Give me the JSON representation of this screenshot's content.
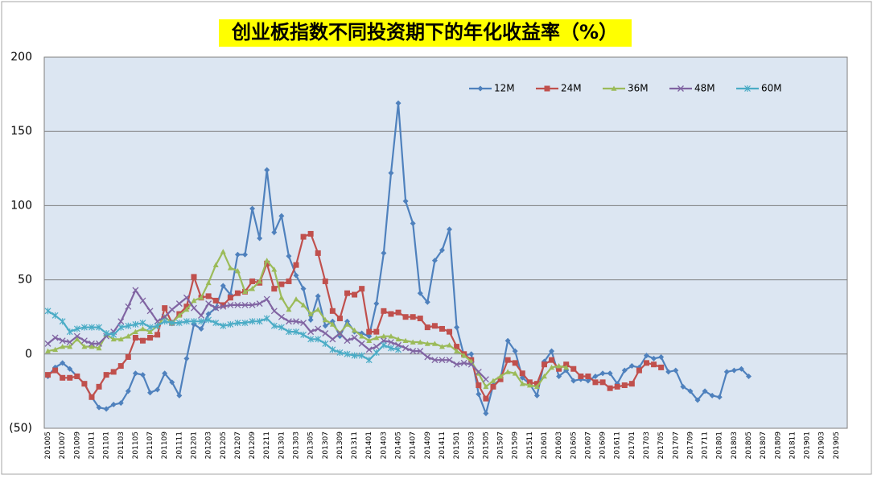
{
  "chart_data": {
    "type": "line",
    "title": "创业板指数不同投资期下的年化收益率（%）",
    "categories": [
      "201005",
      null,
      "201007",
      null,
      "201009",
      null,
      "201011",
      null,
      "201101",
      null,
      "201103",
      null,
      "201105",
      null,
      "201107",
      null,
      "201109",
      null,
      "201111",
      null,
      "201201",
      null,
      "201203",
      null,
      "201205",
      null,
      "201207",
      null,
      "201209",
      null,
      "201211",
      null,
      "201301",
      null,
      "201303",
      null,
      "201305",
      null,
      "201307",
      null,
      "201309",
      null,
      "201311",
      null,
      "201401",
      null,
      "201403",
      null,
      "201405",
      null,
      "201407",
      null,
      "201409",
      null,
      "201411",
      null,
      "201501",
      null,
      "201503",
      null,
      "201505",
      null,
      "201507",
      null,
      "201509",
      null,
      "201511",
      null,
      "201601",
      null,
      "201603",
      null,
      "201605",
      null,
      "201607",
      null,
      "201609",
      null,
      "201611",
      null,
      "201701",
      null,
      "201703",
      null,
      "201705",
      null,
      "201707",
      null,
      "201709",
      null,
      "201711",
      null,
      "201801",
      null,
      "201803",
      null,
      "201805",
      null,
      "201807",
      null,
      "201809",
      null,
      "201811",
      null,
      "201901",
      null,
      "201903",
      null,
      "201905",
      null
    ],
    "series": [
      {
        "name": "12M",
        "color": "#4f81bd",
        "marker": "diamond",
        "values": [
          -15,
          -9,
          -6,
          -10,
          -15,
          -20,
          -29,
          -36,
          -37,
          -34,
          -33,
          -25,
          -13,
          -14,
          -26,
          -24,
          -13,
          -19,
          -28,
          -3,
          20,
          17,
          27,
          31,
          46,
          40,
          67,
          67,
          98,
          78,
          124,
          82,
          93,
          66,
          53,
          44,
          23,
          39,
          19,
          22,
          12,
          22,
          15,
          14,
          12,
          34,
          68,
          122,
          169,
          103,
          88,
          41,
          35,
          63,
          70,
          84,
          18,
          -1,
          0,
          -27,
          -40,
          -21,
          -17,
          9,
          2,
          -16,
          -20,
          -28,
          -5,
          2,
          -15,
          -11,
          -18,
          -17,
          -18,
          -15,
          -13,
          -13,
          -20,
          -11,
          -8,
          -9,
          -1,
          -3,
          -2,
          -12,
          -11,
          -22,
          -25,
          -31,
          -25,
          -28,
          -29,
          -12,
          -11,
          -10,
          -15,
          null,
          null,
          null,
          null,
          null,
          null,
          null,
          null,
          null,
          null,
          null,
          null,
          null
        ]
      },
      {
        "name": "24M",
        "color": "#c0504d",
        "marker": "square",
        "values": [
          -14,
          -11,
          -16,
          -16,
          -15,
          -20,
          -29,
          -22,
          -14,
          -12,
          -8,
          -2,
          11,
          9,
          11,
          13,
          31,
          21,
          27,
          32,
          52,
          38,
          39,
          36,
          33,
          38,
          41,
          42,
          49,
          48,
          61,
          44,
          47,
          49,
          60,
          79,
          81,
          68,
          49,
          29,
          24,
          41,
          40,
          44,
          15,
          15,
          29,
          27,
          28,
          25,
          25,
          24,
          18,
          19,
          17,
          15,
          5,
          0,
          -4,
          -21,
          -30,
          -22,
          -17,
          -4,
          -6,
          -13,
          -19,
          -20,
          -7,
          -4,
          -10,
          -7,
          -10,
          -15,
          -15,
          -19,
          -19,
          -23,
          -22,
          -21,
          -20,
          -11,
          -6,
          -7,
          -9,
          null,
          null,
          null,
          null,
          null,
          null,
          null,
          null,
          null,
          null,
          null,
          null,
          null,
          null,
          null,
          null,
          null,
          null,
          null,
          null,
          null,
          null,
          null,
          null,
          null
        ]
      },
      {
        "name": "36M",
        "color": "#9bbb59",
        "marker": "triangle",
        "values": [
          2,
          3,
          5,
          5,
          10,
          5,
          5,
          4,
          13,
          10,
          10,
          12,
          15,
          17,
          15,
          19,
          25,
          21,
          26,
          30,
          36,
          38,
          48,
          60,
          69,
          58,
          56,
          42,
          44,
          49,
          63,
          57,
          38,
          30,
          37,
          33,
          27,
          30,
          23,
          20,
          14,
          20,
          16,
          12,
          9,
          11,
          12,
          12,
          10,
          9,
          8,
          8,
          7,
          7,
          5,
          6,
          2,
          -1,
          -5,
          -13,
          -22,
          -18,
          -15,
          -12,
          -13,
          -20,
          -21,
          -22,
          -15,
          -9,
          -8,
          -9,
          null,
          null,
          null,
          null,
          null,
          null,
          null,
          null,
          null,
          null,
          null,
          null,
          null,
          null,
          null,
          null,
          null,
          null,
          null,
          null,
          null,
          null,
          null,
          null,
          null,
          null,
          null,
          null,
          null,
          null,
          null,
          null,
          null,
          null,
          null,
          null,
          null,
          null
        ]
      },
      {
        "name": "48M",
        "color": "#8064a2",
        "marker": "cross",
        "values": [
          7,
          11,
          9,
          8,
          12,
          9,
          7,
          7,
          12,
          15,
          22,
          32,
          43,
          36,
          29,
          22,
          25,
          30,
          34,
          38,
          31,
          26,
          34,
          31,
          32,
          33,
          33,
          33,
          33,
          34,
          37,
          29,
          25,
          22,
          22,
          21,
          15,
          17,
          14,
          10,
          14,
          9,
          11,
          7,
          3,
          5,
          9,
          8,
          6,
          4,
          2,
          2,
          -2,
          -4,
          -4,
          -4,
          -7,
          -6,
          -7,
          -12,
          -17,
          null,
          null,
          null,
          null,
          null,
          null,
          null,
          null,
          null,
          null,
          null,
          null,
          null,
          null,
          null,
          null,
          null,
          null,
          null,
          null,
          null,
          null,
          null,
          null,
          null,
          null,
          null,
          null,
          null,
          null,
          null,
          null,
          null,
          null,
          null,
          null,
          null,
          null,
          null,
          null,
          null,
          null,
          null,
          null,
          null,
          null,
          null,
          null,
          null
        ]
      },
      {
        "name": "60M",
        "color": "#4bacc6",
        "marker": "star",
        "values": [
          29,
          26,
          22,
          15,
          17,
          18,
          18,
          18,
          14,
          13,
          18,
          19,
          20,
          21,
          18,
          19,
          22,
          21,
          21,
          22,
          22,
          22,
          23,
          21,
          19,
          20,
          21,
          21,
          22,
          22,
          24,
          19,
          18,
          15,
          15,
          13,
          10,
          10,
          7,
          3,
          1,
          0,
          -1,
          -1,
          -4,
          1,
          6,
          4,
          3,
          null,
          null,
          null,
          null,
          null,
          null,
          null,
          null,
          null,
          null,
          null,
          null,
          null,
          null,
          null,
          null,
          null,
          null,
          null,
          null,
          null,
          null,
          null,
          null,
          null,
          null,
          null,
          null,
          null,
          null,
          null,
          null,
          null,
          null,
          null,
          null,
          null,
          null,
          null,
          null,
          null,
          null,
          null,
          null,
          null,
          null,
          null,
          null,
          null,
          null,
          null,
          null,
          null,
          null,
          null,
          null,
          null,
          null,
          null,
          null,
          null
        ]
      }
    ],
    "ylim": [
      -50,
      200
    ],
    "yticks": [
      {
        "value": -50,
        "label": "(50)"
      },
      0,
      50,
      100,
      150,
      200
    ],
    "grid": true
  }
}
